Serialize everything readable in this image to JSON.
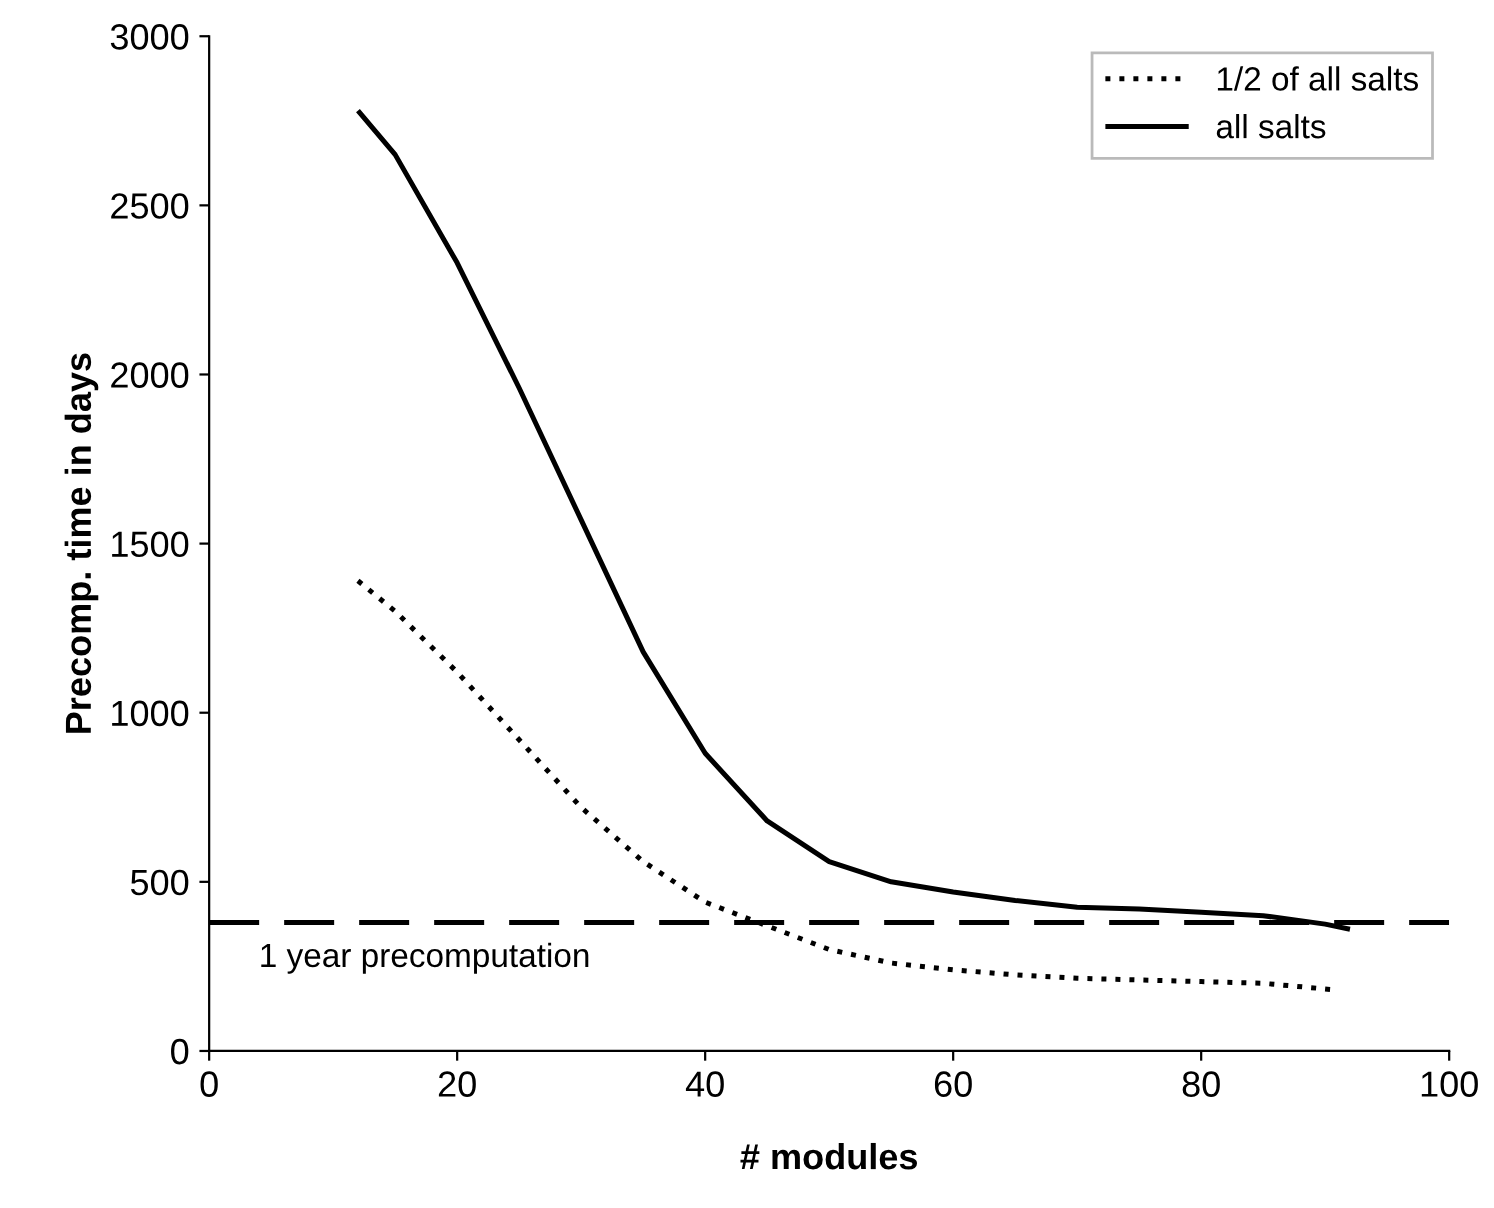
{
  "chart_data": {
    "type": "line",
    "xlabel": "# modules",
    "ylabel": "Precomp. time in days",
    "xlim": [
      0,
      100
    ],
    "xticks": [
      0,
      20,
      40,
      60,
      80,
      100
    ],
    "ylim": [
      0,
      3000
    ],
    "yticks": [
      0,
      500,
      1000,
      1500,
      2000,
      2500,
      3000
    ],
    "grid": false,
    "legend": "top right",
    "series": [
      {
        "name": "1/2 of all salts",
        "color": "#000000",
        "line_style": "dotted",
        "x": [
          12,
          15,
          20,
          25,
          30,
          35,
          40,
          45,
          50,
          55,
          60,
          65,
          70,
          75,
          80,
          85,
          91
        ],
        "values": [
          1390,
          1300,
          1120,
          920,
          720,
          560,
          440,
          370,
          300,
          260,
          240,
          225,
          215,
          210,
          205,
          200,
          180
        ]
      },
      {
        "name": "all salts",
        "color": "#000000",
        "line_style": "solid",
        "x": [
          12,
          15,
          20,
          25,
          30,
          35,
          40,
          45,
          50,
          55,
          60,
          65,
          70,
          75,
          80,
          85,
          90,
          92
        ],
        "values": [
          2780,
          2650,
          2330,
          1960,
          1570,
          1180,
          880,
          680,
          560,
          500,
          470,
          445,
          425,
          420,
          410,
          400,
          375,
          360
        ]
      }
    ],
    "ref_lines": [
      {
        "axis": "y",
        "value": 380,
        "label": "1 year precomputation",
        "color": "#000000",
        "line_style": "dashed"
      }
    ]
  }
}
